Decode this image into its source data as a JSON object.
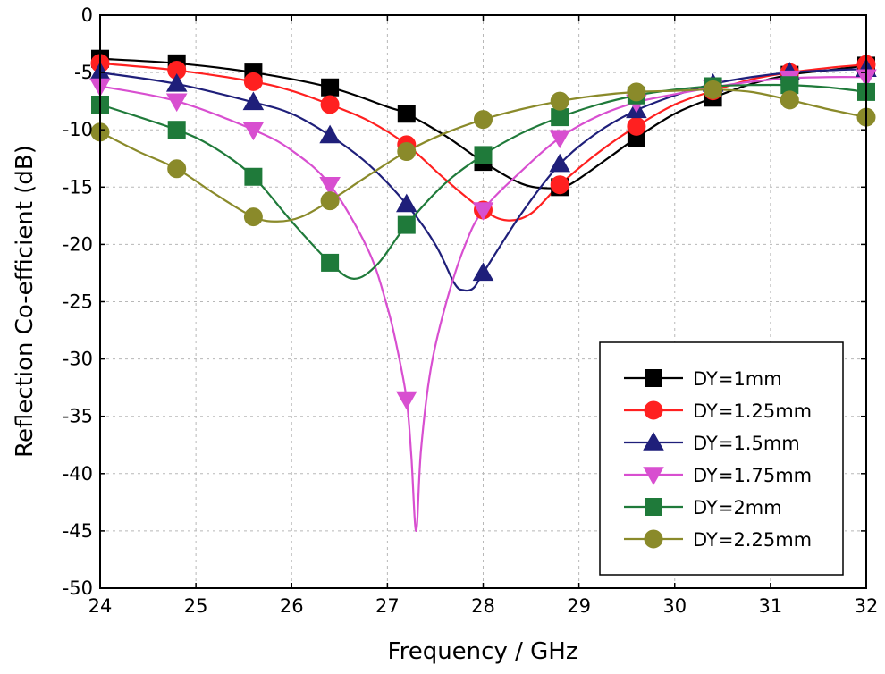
{
  "chart_data": {
    "type": "line",
    "title": "",
    "xlabel": "Frequency / GHz",
    "ylabel": "Reflection Co-efficient (dB)",
    "xlim": [
      24,
      32
    ],
    "ylim": [
      -50,
      0
    ],
    "xticks": [
      24,
      25,
      26,
      27,
      28,
      29,
      30,
      31,
      32
    ],
    "yticks": [
      0,
      -5,
      -10,
      -15,
      -20,
      -25,
      -30,
      -35,
      -40,
      -45,
      -50
    ],
    "xtick_labels": [
      "24",
      "25",
      "26",
      "27",
      "28",
      "29",
      "30",
      "31",
      "32"
    ],
    "ytick_labels": [
      "0",
      "-5",
      "-10",
      "-15",
      "-20",
      "-25",
      "-30",
      "-35",
      "-40",
      "-45",
      "-50"
    ],
    "grid": true,
    "legend_position": "bottom-right",
    "marker_x": [
      24,
      24.8,
      25.6,
      26.4,
      27.2,
      28,
      28.8,
      29.6,
      30.4,
      31.2,
      32
    ],
    "series": [
      {
        "name": "DY=1mm",
        "color": "#000000",
        "marker": "square",
        "curve": [
          [
            24,
            -3.8
          ],
          [
            24.8,
            -4.2
          ],
          [
            25.6,
            -5.0
          ],
          [
            26.4,
            -6.3
          ],
          [
            27.0,
            -8.0
          ],
          [
            27.2,
            -8.6
          ],
          [
            27.6,
            -10.5
          ],
          [
            28.0,
            -12.8
          ],
          [
            28.4,
            -14.7
          ],
          [
            28.7,
            -15.1
          ],
          [
            28.9,
            -14.8
          ],
          [
            29.3,
            -12.5
          ],
          [
            29.6,
            -10.7
          ],
          [
            30.0,
            -8.6
          ],
          [
            30.4,
            -7.2
          ],
          [
            30.8,
            -6.0
          ],
          [
            31.2,
            -5.2
          ],
          [
            31.6,
            -4.8
          ],
          [
            32,
            -4.4
          ]
        ],
        "markers": [
          -3.8,
          -4.2,
          -5.0,
          -6.3,
          -8.6,
          -12.8,
          -15.0,
          -10.7,
          -7.2,
          -5.2,
          -4.4
        ]
      },
      {
        "name": "DY=1.25mm",
        "color": "#ff2020",
        "marker": "circle",
        "curve": [
          [
            24,
            -4.2
          ],
          [
            24.8,
            -4.8
          ],
          [
            25.6,
            -5.8
          ],
          [
            26.0,
            -6.6
          ],
          [
            26.4,
            -7.8
          ],
          [
            26.8,
            -9.2
          ],
          [
            27.2,
            -11.3
          ],
          [
            27.6,
            -14.3
          ],
          [
            28.0,
            -17.0
          ],
          [
            28.25,
            -17.9
          ],
          [
            28.5,
            -17.3
          ],
          [
            28.8,
            -14.8
          ],
          [
            29.2,
            -12.0
          ],
          [
            29.6,
            -9.7
          ],
          [
            30.0,
            -7.8
          ],
          [
            30.4,
            -6.6
          ],
          [
            30.8,
            -5.6
          ],
          [
            31.2,
            -5.0
          ],
          [
            31.6,
            -4.6
          ],
          [
            32,
            -4.3
          ]
        ],
        "markers": [
          -4.2,
          -4.8,
          -5.8,
          -7.8,
          -11.3,
          -17.0,
          -14.8,
          -9.7,
          -6.6,
          -5.0,
          -4.3
        ]
      },
      {
        "name": "DY=1.5mm",
        "color": "#1f1f7a",
        "marker": "triangle-up",
        "curve": [
          [
            24,
            -5.0
          ],
          [
            24.8,
            -6.0
          ],
          [
            25.6,
            -7.6
          ],
          [
            26.0,
            -8.6
          ],
          [
            26.4,
            -10.5
          ],
          [
            26.8,
            -13.0
          ],
          [
            27.2,
            -16.5
          ],
          [
            27.5,
            -20.0
          ],
          [
            27.7,
            -23.4
          ],
          [
            27.8,
            -24.0
          ],
          [
            27.9,
            -23.8
          ],
          [
            28.0,
            -22.5
          ],
          [
            28.4,
            -17.3
          ],
          [
            28.8,
            -13.0
          ],
          [
            29.2,
            -10.2
          ],
          [
            29.6,
            -8.3
          ],
          [
            30.0,
            -7.0
          ],
          [
            30.4,
            -6.0
          ],
          [
            30.8,
            -5.4
          ],
          [
            31.2,
            -5.0
          ],
          [
            31.6,
            -4.8
          ],
          [
            32,
            -4.7
          ]
        ],
        "markers": [
          -5.0,
          -6.0,
          -7.6,
          -10.5,
          -16.5,
          -22.5,
          -13.0,
          -8.3,
          -6.0,
          -5.0,
          -4.7
        ]
      },
      {
        "name": "DY=1.75mm",
        "color": "#d84fd0",
        "marker": "triangle-down",
        "curve": [
          [
            24,
            -6.2
          ],
          [
            24.8,
            -7.5
          ],
          [
            25.6,
            -10.0
          ],
          [
            26.0,
            -11.8
          ],
          [
            26.4,
            -14.8
          ],
          [
            26.8,
            -20.5
          ],
          [
            27.0,
            -25.5
          ],
          [
            27.1,
            -29.0
          ],
          [
            27.2,
            -33.5
          ],
          [
            27.25,
            -38.5
          ],
          [
            27.3,
            -45.0
          ],
          [
            27.35,
            -38.0
          ],
          [
            27.45,
            -31.0
          ],
          [
            27.6,
            -25.5
          ],
          [
            27.8,
            -20.3
          ],
          [
            28.0,
            -17.0
          ],
          [
            28.4,
            -13.6
          ],
          [
            28.8,
            -10.7
          ],
          [
            29.2,
            -8.8
          ],
          [
            29.6,
            -7.6
          ],
          [
            30.0,
            -6.9
          ],
          [
            30.4,
            -6.3
          ],
          [
            30.8,
            -5.8
          ],
          [
            31.2,
            -5.5
          ],
          [
            31.6,
            -5.4
          ],
          [
            32,
            -5.4
          ]
        ],
        "markers": [
          -6.2,
          -7.5,
          -10.0,
          -14.8,
          -33.5,
          -17.0,
          -10.7,
          -7.6,
          -6.3,
          -5.5,
          -5.4
        ]
      },
      {
        "name": "DY=2mm",
        "color": "#1f7a3a",
        "marker": "square",
        "curve": [
          [
            24,
            -7.8
          ],
          [
            24.8,
            -10.0
          ],
          [
            25.2,
            -11.6
          ],
          [
            25.6,
            -14.1
          ],
          [
            26.0,
            -18.0
          ],
          [
            26.4,
            -21.6
          ],
          [
            26.65,
            -23.0
          ],
          [
            26.9,
            -21.7
          ],
          [
            27.2,
            -18.3
          ],
          [
            27.6,
            -14.7
          ],
          [
            28.0,
            -12.2
          ],
          [
            28.4,
            -10.3
          ],
          [
            28.8,
            -8.9
          ],
          [
            29.2,
            -7.8
          ],
          [
            29.6,
            -7.0
          ],
          [
            30.0,
            -6.5
          ],
          [
            30.4,
            -6.2
          ],
          [
            30.8,
            -6.1
          ],
          [
            31.2,
            -6.1
          ],
          [
            31.6,
            -6.3
          ],
          [
            32,
            -6.7
          ]
        ],
        "markers": [
          -7.8,
          -10.0,
          -14.1,
          -21.6,
          -18.3,
          -12.2,
          -8.9,
          -7.0,
          -6.2,
          -6.1,
          -6.7
        ]
      },
      {
        "name": "DY=2.25mm",
        "color": "#8a8a2a",
        "marker": "circle",
        "curve": [
          [
            24,
            -10.2
          ],
          [
            24.4,
            -11.9
          ],
          [
            24.8,
            -13.4
          ],
          [
            25.2,
            -15.6
          ],
          [
            25.6,
            -17.6
          ],
          [
            25.85,
            -18.0
          ],
          [
            26.1,
            -17.6
          ],
          [
            26.4,
            -16.2
          ],
          [
            26.8,
            -14.0
          ],
          [
            27.2,
            -11.9
          ],
          [
            27.6,
            -10.3
          ],
          [
            28.0,
            -9.1
          ],
          [
            28.4,
            -8.2
          ],
          [
            28.8,
            -7.5
          ],
          [
            29.2,
            -7.0
          ],
          [
            29.6,
            -6.7
          ],
          [
            30.0,
            -6.6
          ],
          [
            30.4,
            -6.5
          ],
          [
            30.8,
            -6.7
          ],
          [
            31.2,
            -7.4
          ],
          [
            31.6,
            -8.2
          ],
          [
            32,
            -8.9
          ]
        ],
        "markers": [
          -10.2,
          -13.4,
          -17.6,
          -16.2,
          -11.9,
          -9.1,
          -7.5,
          -6.7,
          -6.5,
          -7.4,
          -8.9
        ]
      }
    ]
  }
}
